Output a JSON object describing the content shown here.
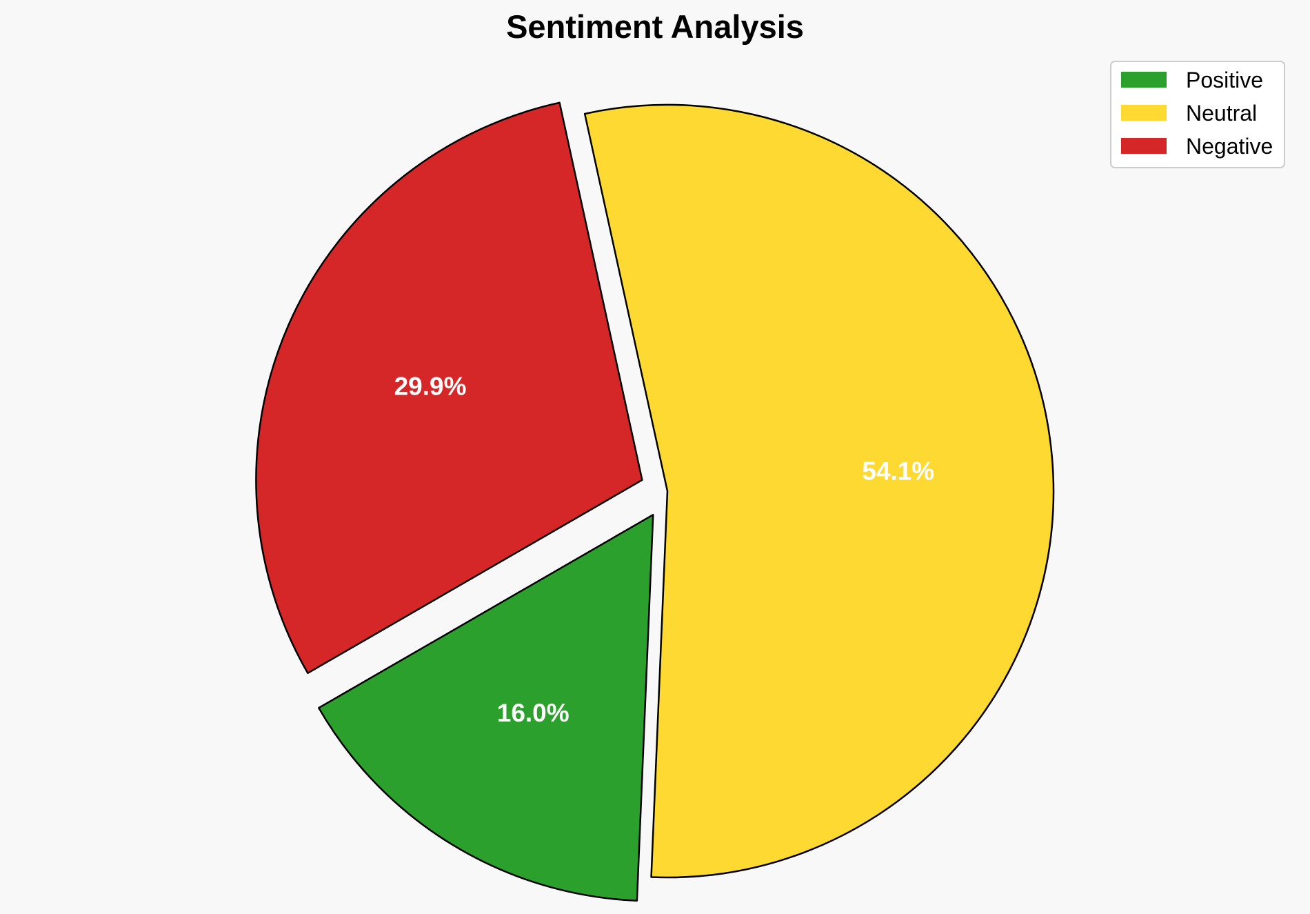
{
  "chart_data": {
    "type": "pie",
    "title": "Sentiment Analysis",
    "slices": [
      {
        "label": "Positive",
        "value": 16.0,
        "display": "16.0%",
        "color": "#2ca02c",
        "exploded": true
      },
      {
        "label": "Neutral",
        "value": 54.1,
        "display": "54.1%",
        "color": "#fed931",
        "exploded": false
      },
      {
        "label": "Negative",
        "value": 29.9,
        "display": "29.9%",
        "color": "#d62728",
        "exploded": true
      }
    ],
    "legend": "top-right",
    "grid": false
  }
}
